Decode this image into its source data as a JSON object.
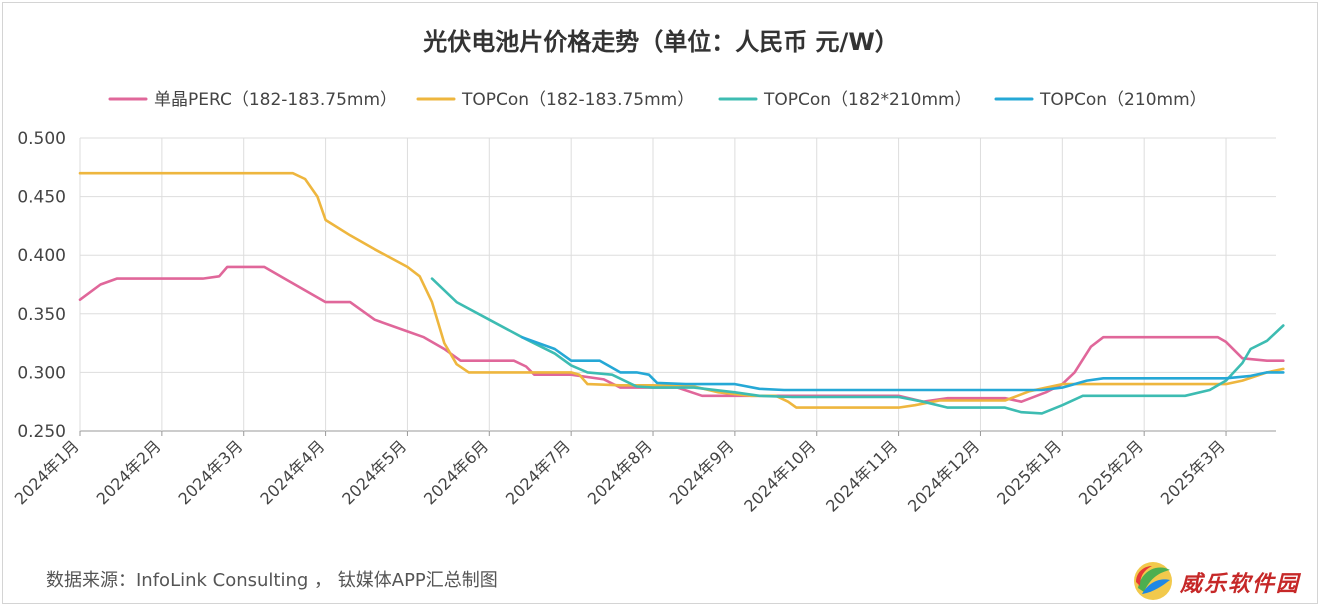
{
  "title": "光伏电池片价格走势（单位：人民币 元/W）",
  "source": "数据来源：InfoLink Consulting ， 钛媒体APP汇总制图",
  "watermark_text": "威乐软件园",
  "chart_data": {
    "type": "line",
    "title": "光伏电池片价格走势（单位：人民币 元/W）",
    "xlabel": "",
    "ylabel": "",
    "ylim": [
      0.25,
      0.5
    ],
    "yticks": [
      "0.500",
      "0.450",
      "0.400",
      "0.350",
      "0.300",
      "0.250"
    ],
    "grid": true,
    "legend_position": "top",
    "x_ticks": [
      "2024年1月",
      "2024年2月",
      "2024年3月",
      "2024年4月",
      "2024年5月",
      "2024年6月",
      "2024年7月",
      "2024年8月",
      "2024年9月",
      "2024年10月",
      "2024年11月",
      "2024年12月",
      "2025年1月",
      "2025年2月",
      "2025年3月"
    ],
    "series": [
      {
        "name": "单晶PERC（182-183.75mm）",
        "color": "#e0679a",
        "points": [
          [
            0.0,
            0.362
          ],
          [
            0.25,
            0.375
          ],
          [
            0.45,
            0.38
          ],
          [
            1.0,
            0.38
          ],
          [
            1.5,
            0.38
          ],
          [
            1.7,
            0.382
          ],
          [
            1.8,
            0.39
          ],
          [
            2.0,
            0.39
          ],
          [
            2.25,
            0.39
          ],
          [
            2.5,
            0.38
          ],
          [
            2.75,
            0.37
          ],
          [
            3.0,
            0.36
          ],
          [
            3.3,
            0.36
          ],
          [
            3.6,
            0.345
          ],
          [
            4.0,
            0.335
          ],
          [
            4.2,
            0.33
          ],
          [
            4.45,
            0.32
          ],
          [
            4.65,
            0.31
          ],
          [
            5.0,
            0.31
          ],
          [
            5.3,
            0.31
          ],
          [
            5.45,
            0.305
          ],
          [
            5.55,
            0.298
          ],
          [
            6.0,
            0.298
          ],
          [
            6.4,
            0.294
          ],
          [
            6.6,
            0.287
          ],
          [
            7.0,
            0.287
          ],
          [
            7.3,
            0.287
          ],
          [
            7.6,
            0.28
          ],
          [
            8.0,
            0.28
          ],
          [
            8.5,
            0.28
          ],
          [
            9.0,
            0.28
          ],
          [
            9.5,
            0.28
          ],
          [
            9.75,
            0.28
          ],
          [
            10.0,
            0.28
          ],
          [
            10.3,
            0.275
          ],
          [
            10.6,
            0.278
          ],
          [
            11.0,
            0.278
          ],
          [
            11.3,
            0.278
          ],
          [
            11.5,
            0.275
          ],
          [
            11.8,
            0.283
          ],
          [
            12.0,
            0.29
          ],
          [
            12.15,
            0.3
          ],
          [
            12.35,
            0.322
          ],
          [
            12.5,
            0.33
          ],
          [
            13.0,
            0.33
          ],
          [
            13.5,
            0.33
          ],
          [
            13.9,
            0.33
          ],
          [
            14.0,
            0.326
          ],
          [
            14.2,
            0.312
          ],
          [
            14.5,
            0.31
          ],
          [
            14.7,
            0.31
          ]
        ]
      },
      {
        "name": "TOPCon（182-183.75mm）",
        "color": "#eeb63e",
        "points": [
          [
            0.0,
            0.47
          ],
          [
            0.5,
            0.47
          ],
          [
            1.0,
            0.47
          ],
          [
            1.5,
            0.47
          ],
          [
            2.0,
            0.47
          ],
          [
            2.4,
            0.47
          ],
          [
            2.6,
            0.47
          ],
          [
            2.75,
            0.465
          ],
          [
            2.9,
            0.45
          ],
          [
            3.0,
            0.43
          ],
          [
            3.3,
            0.417
          ],
          [
            3.6,
            0.405
          ],
          [
            4.0,
            0.39
          ],
          [
            4.15,
            0.382
          ],
          [
            4.3,
            0.36
          ],
          [
            4.45,
            0.325
          ],
          [
            4.6,
            0.307
          ],
          [
            4.75,
            0.3
          ],
          [
            5.0,
            0.3
          ],
          [
            5.5,
            0.3
          ],
          [
            6.0,
            0.3
          ],
          [
            6.1,
            0.298
          ],
          [
            6.2,
            0.29
          ],
          [
            6.6,
            0.289
          ],
          [
            7.0,
            0.289
          ],
          [
            7.5,
            0.288
          ],
          [
            7.8,
            0.283
          ],
          [
            8.2,
            0.28
          ],
          [
            8.5,
            0.28
          ],
          [
            8.65,
            0.275
          ],
          [
            8.75,
            0.27
          ],
          [
            9.0,
            0.27
          ],
          [
            9.5,
            0.27
          ],
          [
            10.0,
            0.27
          ],
          [
            10.2,
            0.272
          ],
          [
            10.5,
            0.276
          ],
          [
            10.8,
            0.276
          ],
          [
            11.0,
            0.276
          ],
          [
            11.3,
            0.276
          ],
          [
            11.6,
            0.284
          ],
          [
            12.0,
            0.29
          ],
          [
            12.5,
            0.29
          ],
          [
            13.0,
            0.29
          ],
          [
            13.5,
            0.29
          ],
          [
            13.8,
            0.29
          ],
          [
            14.0,
            0.29
          ],
          [
            14.2,
            0.293
          ],
          [
            14.5,
            0.3
          ],
          [
            14.7,
            0.303
          ]
        ]
      },
      {
        "name": "TOPCon（182*210mm）",
        "color": "#3dbcb2",
        "points": [
          [
            4.3,
            0.38
          ],
          [
            4.6,
            0.36
          ],
          [
            5.0,
            0.345
          ],
          [
            5.4,
            0.33
          ],
          [
            5.8,
            0.316
          ],
          [
            6.0,
            0.306
          ],
          [
            6.2,
            0.3
          ],
          [
            6.5,
            0.298
          ],
          [
            6.8,
            0.288
          ],
          [
            7.0,
            0.287
          ],
          [
            7.5,
            0.287
          ],
          [
            8.0,
            0.283
          ],
          [
            8.3,
            0.28
          ],
          [
            8.7,
            0.279
          ],
          [
            9.0,
            0.279
          ],
          [
            9.5,
            0.279
          ],
          [
            10.0,
            0.279
          ],
          [
            10.3,
            0.275
          ],
          [
            10.6,
            0.27
          ],
          [
            11.0,
            0.27
          ],
          [
            11.3,
            0.27
          ],
          [
            11.5,
            0.266
          ],
          [
            11.75,
            0.265
          ],
          [
            12.0,
            0.272
          ],
          [
            12.25,
            0.28
          ],
          [
            12.5,
            0.28
          ],
          [
            13.0,
            0.28
          ],
          [
            13.5,
            0.28
          ],
          [
            13.8,
            0.285
          ],
          [
            14.0,
            0.293
          ],
          [
            14.2,
            0.308
          ],
          [
            14.3,
            0.32
          ],
          [
            14.5,
            0.327
          ],
          [
            14.7,
            0.34
          ]
        ]
      },
      {
        "name": "TOPCon（210mm）",
        "color": "#25a8d6",
        "points": [
          [
            5.4,
            0.33
          ],
          [
            5.8,
            0.32
          ],
          [
            6.0,
            0.31
          ],
          [
            6.2,
            0.31
          ],
          [
            6.35,
            0.31
          ],
          [
            6.45,
            0.306
          ],
          [
            6.6,
            0.3
          ],
          [
            6.8,
            0.3
          ],
          [
            6.95,
            0.298
          ],
          [
            7.05,
            0.291
          ],
          [
            7.4,
            0.29
          ],
          [
            7.6,
            0.29
          ],
          [
            8.0,
            0.29
          ],
          [
            8.3,
            0.286
          ],
          [
            8.6,
            0.285
          ],
          [
            9.0,
            0.285
          ],
          [
            9.5,
            0.285
          ],
          [
            10.0,
            0.285
          ],
          [
            10.5,
            0.285
          ],
          [
            11.0,
            0.285
          ],
          [
            11.5,
            0.285
          ],
          [
            11.75,
            0.285
          ],
          [
            12.0,
            0.287
          ],
          [
            12.3,
            0.293
          ],
          [
            12.5,
            0.295
          ],
          [
            13.0,
            0.295
          ],
          [
            13.5,
            0.295
          ],
          [
            14.0,
            0.295
          ],
          [
            14.3,
            0.297
          ],
          [
            14.5,
            0.3
          ],
          [
            14.7,
            0.3
          ]
        ]
      }
    ]
  }
}
